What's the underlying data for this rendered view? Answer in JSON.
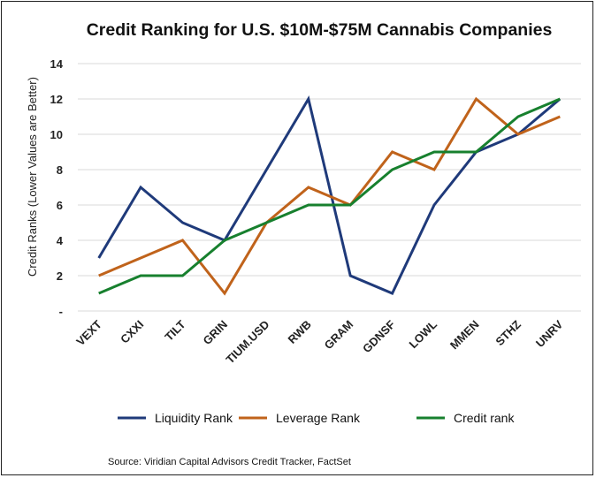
{
  "chart_data": {
    "type": "line",
    "title": "Credit Ranking for U.S. $10M-$75M Cannabis Companies",
    "ylabel": "Credit Ranks (Lower Values are Better)",
    "xlabel": "",
    "categories": [
      "VEXT",
      "CXXI",
      "TILT",
      "GRIN",
      "TIUM.USD",
      "RWB",
      "GRAM",
      "GDNSF",
      "LOWL",
      "MMEN",
      "STHZ",
      "UNRV"
    ],
    "y_ticks": [
      "-",
      "2",
      "4",
      "6",
      "8",
      "10",
      "12",
      "14"
    ],
    "ylim": [
      0,
      14
    ],
    "grid": "horizontal",
    "legend_position": "bottom",
    "series": [
      {
        "name": "Liquidity Rank",
        "color": "#1f3a7a",
        "values": [
          3,
          7,
          5,
          4,
          8,
          12,
          2,
          1,
          6,
          9,
          10,
          12
        ]
      },
      {
        "name": "Leverage Rank",
        "color": "#c0631b",
        "values": [
          2,
          3,
          4,
          1,
          5,
          7,
          6,
          9,
          8,
          12,
          10,
          11
        ]
      },
      {
        "name": "Credit rank",
        "color": "#17802e",
        "values": [
          1,
          2,
          2,
          4,
          5,
          6,
          6,
          8,
          9,
          9,
          11,
          12
        ]
      }
    ],
    "source": "Source: Viridian Capital Advisors Credit Tracker, FactSet"
  }
}
